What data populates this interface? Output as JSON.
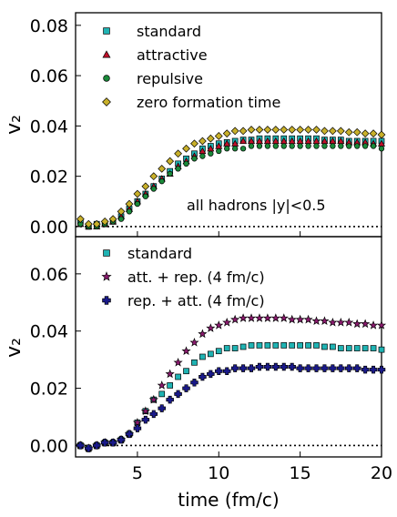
{
  "chart_data": [
    {
      "type": "scatter",
      "title": "",
      "xlabel": "",
      "ylabel": "v₂",
      "xlim": [
        1.2,
        20
      ],
      "ylim": [
        -0.004,
        0.085
      ],
      "yticks": [
        0.0,
        0.02,
        0.04,
        0.06,
        0.08
      ],
      "ytick_labels": [
        "0.00",
        "0.02",
        "0.04",
        "0.06",
        "0.08"
      ],
      "grid": false,
      "legend_position": "top-left",
      "annotation": "all hadrons |y|<0.5",
      "reference_line": 0,
      "series": [
        {
          "name": "standard",
          "marker": "square",
          "color": "#1fb3b3",
          "x": [
            1.5,
            2,
            2.5,
            3,
            3.5,
            4,
            4.5,
            5,
            5.5,
            6,
            6.5,
            7,
            7.5,
            8,
            8.5,
            9,
            9.5,
            10,
            10.5,
            11,
            11.5,
            12,
            12.5,
            13,
            13.5,
            14,
            14.5,
            15,
            15.5,
            16,
            16.5,
            17,
            17.5,
            18,
            18.5,
            19,
            19.5,
            20
          ],
          "y": [
            0.002,
            0.0,
            0.001,
            0.001,
            0.002,
            0.004,
            0.007,
            0.01,
            0.013,
            0.016,
            0.019,
            0.022,
            0.025,
            0.027,
            0.029,
            0.031,
            0.032,
            0.033,
            0.0335,
            0.034,
            0.0345,
            0.0345,
            0.035,
            0.035,
            0.035,
            0.035,
            0.035,
            0.035,
            0.035,
            0.035,
            0.0345,
            0.0345,
            0.0345,
            0.034,
            0.034,
            0.034,
            0.034,
            0.034
          ]
        },
        {
          "name": "attractive",
          "marker": "triangle",
          "color": "#c0102a",
          "x": [
            1.5,
            2,
            2.5,
            3,
            3.5,
            4,
            4.5,
            5,
            5.5,
            6,
            6.5,
            7,
            7.5,
            8,
            8.5,
            9,
            9.5,
            10,
            10.5,
            11,
            11.5,
            12,
            12.5,
            13,
            13.5,
            14,
            14.5,
            15,
            15.5,
            16,
            16.5,
            17,
            17.5,
            18,
            18.5,
            19,
            19.5,
            20
          ],
          "y": [
            0.001,
            0.0,
            0.0,
            0.001,
            0.002,
            0.004,
            0.007,
            0.01,
            0.013,
            0.016,
            0.019,
            0.021,
            0.024,
            0.026,
            0.028,
            0.03,
            0.031,
            0.032,
            0.033,
            0.033,
            0.034,
            0.034,
            0.034,
            0.034,
            0.034,
            0.034,
            0.034,
            0.034,
            0.034,
            0.034,
            0.034,
            0.034,
            0.034,
            0.0335,
            0.0335,
            0.0335,
            0.033,
            0.033
          ]
        },
        {
          "name": "repulsive",
          "marker": "circle",
          "color": "#1a8a3a",
          "x": [
            1.5,
            2,
            2.5,
            3,
            3.5,
            4,
            4.5,
            5,
            5.5,
            6,
            6.5,
            7,
            7.5,
            8,
            8.5,
            9,
            9.5,
            10,
            10.5,
            11,
            11.5,
            12,
            12.5,
            13,
            13.5,
            14,
            14.5,
            15,
            15.5,
            16,
            16.5,
            17,
            17.5,
            18,
            18.5,
            19,
            19.5,
            20
          ],
          "y": [
            0.001,
            0.0,
            0.0,
            0.001,
            0.002,
            0.003,
            0.006,
            0.009,
            0.012,
            0.015,
            0.018,
            0.021,
            0.023,
            0.025,
            0.027,
            0.028,
            0.029,
            0.03,
            0.031,
            0.031,
            0.031,
            0.032,
            0.032,
            0.032,
            0.032,
            0.032,
            0.032,
            0.032,
            0.032,
            0.032,
            0.032,
            0.032,
            0.032,
            0.032,
            0.032,
            0.032,
            0.032,
            0.031
          ]
        },
        {
          "name": "zero formation time",
          "marker": "diamond",
          "color": "#c8b02a",
          "x": [
            1.5,
            2,
            2.5,
            3,
            3.5,
            4,
            4.5,
            5,
            5.5,
            6,
            6.5,
            7,
            7.5,
            8,
            8.5,
            9,
            9.5,
            10,
            10.5,
            11,
            11.5,
            12,
            12.5,
            13,
            13.5,
            14,
            14.5,
            15,
            15.5,
            16,
            16.5,
            17,
            17.5,
            18,
            18.5,
            19,
            19.5,
            20
          ],
          "y": [
            0.003,
            0.001,
            0.001,
            0.002,
            0.003,
            0.006,
            0.009,
            0.013,
            0.016,
            0.02,
            0.023,
            0.026,
            0.029,
            0.031,
            0.033,
            0.034,
            0.035,
            0.036,
            0.037,
            0.038,
            0.038,
            0.0385,
            0.0385,
            0.0385,
            0.0385,
            0.0385,
            0.0385,
            0.0385,
            0.0385,
            0.0385,
            0.038,
            0.038,
            0.038,
            0.0375,
            0.0375,
            0.037,
            0.037,
            0.0365
          ]
        }
      ]
    },
    {
      "type": "scatter",
      "title": "",
      "xlabel": "time (fm/c)",
      "ylabel": "v₂",
      "xlim": [
        1.2,
        20
      ],
      "ylim": [
        -0.004,
        0.073
      ],
      "xticks": [
        5,
        10,
        15,
        20
      ],
      "xtick_labels": [
        "5",
        "10",
        "15",
        "20"
      ],
      "yticks": [
        0.0,
        0.02,
        0.04,
        0.06
      ],
      "ytick_labels": [
        "0.00",
        "0.02",
        "0.04",
        "0.06"
      ],
      "grid": false,
      "legend_position": "top-left",
      "reference_line": 0,
      "series": [
        {
          "name": "standard",
          "marker": "square",
          "color": "#1fb3b3",
          "x": [
            1.5,
            2,
            2.5,
            3,
            3.5,
            4,
            4.5,
            5,
            5.5,
            6,
            6.5,
            7,
            7.5,
            8,
            8.5,
            9,
            9.5,
            10,
            10.5,
            11,
            11.5,
            12,
            12.5,
            13,
            13.5,
            14,
            14.5,
            15,
            15.5,
            16,
            16.5,
            17,
            17.5,
            18,
            18.5,
            19,
            19.5,
            20
          ],
          "y": [
            0.0,
            -0.001,
            0.0,
            0.001,
            0.001,
            0.002,
            0.004,
            0.008,
            0.012,
            0.016,
            0.018,
            0.021,
            0.024,
            0.026,
            0.029,
            0.031,
            0.032,
            0.033,
            0.034,
            0.034,
            0.0345,
            0.035,
            0.035,
            0.035,
            0.035,
            0.035,
            0.035,
            0.035,
            0.035,
            0.035,
            0.0345,
            0.0345,
            0.034,
            0.034,
            0.034,
            0.034,
            0.034,
            0.0335
          ]
        },
        {
          "name": "att. + rep. (4 fm/c)",
          "marker": "star",
          "color": "#8a1a6e",
          "x": [
            1.5,
            2,
            2.5,
            3,
            3.5,
            4,
            4.5,
            5,
            5.5,
            6,
            6.5,
            7,
            7.5,
            8,
            8.5,
            9,
            9.5,
            10,
            10.5,
            11,
            11.5,
            12,
            12.5,
            13,
            13.5,
            14,
            14.5,
            15,
            15.5,
            16,
            16.5,
            17,
            17.5,
            18,
            18.5,
            19,
            19.5,
            20
          ],
          "y": [
            0.0,
            -0.001,
            0.0,
            0.001,
            0.001,
            0.002,
            0.004,
            0.008,
            0.012,
            0.016,
            0.021,
            0.025,
            0.029,
            0.033,
            0.036,
            0.039,
            0.041,
            0.042,
            0.043,
            0.044,
            0.0445,
            0.0445,
            0.0445,
            0.0445,
            0.0445,
            0.0445,
            0.044,
            0.044,
            0.044,
            0.0435,
            0.0435,
            0.043,
            0.043,
            0.043,
            0.0425,
            0.0425,
            0.042,
            0.042
          ]
        },
        {
          "name": "rep. + att. (4 fm/c)",
          "marker": "plus",
          "color": "#1a1a8a",
          "x": [
            1.5,
            2,
            2.5,
            3,
            3.5,
            4,
            4.5,
            5,
            5.5,
            6,
            6.5,
            7,
            7.5,
            8,
            8.5,
            9,
            9.5,
            10,
            10.5,
            11,
            11.5,
            12,
            12.5,
            13,
            13.5,
            14,
            14.5,
            15,
            15.5,
            16,
            16.5,
            17,
            17.5,
            18,
            18.5,
            19,
            19.5,
            20
          ],
          "y": [
            0.0,
            -0.001,
            0.0,
            0.001,
            0.001,
            0.002,
            0.004,
            0.006,
            0.009,
            0.011,
            0.013,
            0.016,
            0.018,
            0.02,
            0.022,
            0.024,
            0.025,
            0.026,
            0.026,
            0.027,
            0.027,
            0.027,
            0.0275,
            0.0275,
            0.0275,
            0.0275,
            0.0275,
            0.027,
            0.027,
            0.027,
            0.027,
            0.027,
            0.027,
            0.027,
            0.027,
            0.0265,
            0.0265,
            0.0265
          ]
        }
      ]
    }
  ]
}
